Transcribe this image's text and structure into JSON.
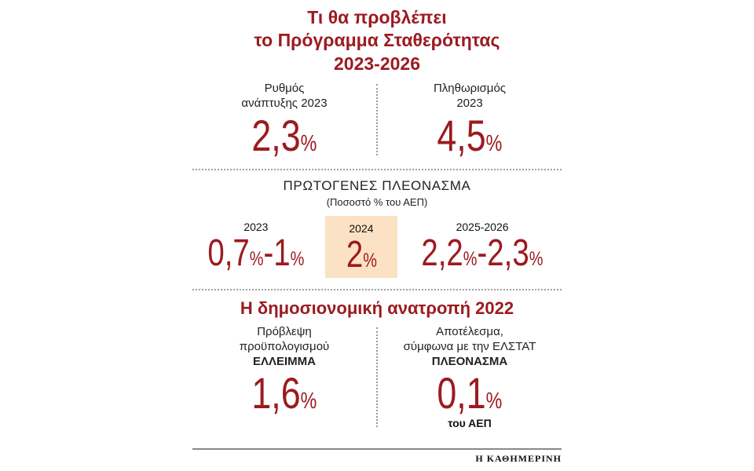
{
  "colors": {
    "accent_red": "#9b1b20",
    "highlight_box": "#fbe2c4",
    "text": "#1a1a1a",
    "divider": "#9a9a9a"
  },
  "header": {
    "title_line1": "Τι θα προβλέπει",
    "title_line2": "το Πρόγραμμα Σταθερότητας",
    "title_line3": "2023-2026"
  },
  "top_stats": [
    {
      "label_line1": "Ρυθμός",
      "label_line2": "ανάπτυξης 2023",
      "value": "2,3%"
    },
    {
      "label_line1": "Πληθωρισμός",
      "label_line2": "2023",
      "value": "4,5%"
    }
  ],
  "primary_surplus": {
    "heading": "ΠΡΩΤΟΓΕΝΕΣ ΠΛΕΟΝΑΣΜΑ",
    "subheading": "(Ποσοστό % του ΑΕΠ)",
    "columns": [
      {
        "year": "2023",
        "value": "0,7%-1%",
        "highlight": false
      },
      {
        "year": "2024",
        "value": "2%",
        "highlight": true
      },
      {
        "year": "2025-2026",
        "value": "2,2%-2,3%",
        "highlight": false
      }
    ]
  },
  "fiscal_2022": {
    "heading": "Η δημοσιονομική ανατροπή 2022",
    "columns": [
      {
        "label_line1": "Πρόβλεψη",
        "label_line2": "προϋπολογισμού",
        "label_bold": "ΕΛΛΕΙΜΜΑ",
        "value": "1,6%",
        "note": ""
      },
      {
        "label_line1": "Αποτέλεσμα,",
        "label_line2": "σύμφωνα με την ΕΛΣΤΑΤ",
        "label_bold": "ΠΛΕΟΝΑΣΜΑ",
        "value": "0,1%",
        "note": "του ΑΕΠ"
      }
    ]
  },
  "footer": {
    "brand": "Η ΚΑΘΗΜΕΡΙΝΗ"
  },
  "chart_data": [
    {
      "type": "table",
      "title": "Τι θα προβλέπει το Πρόγραμμα Σταθερότητας 2023-2026",
      "rows": [
        [
          "Ρυθμός ανάπτυξης 2023",
          "2,3%"
        ],
        [
          "Πληθωρισμός 2023",
          "4,5%"
        ]
      ]
    },
    {
      "type": "table",
      "title": "ΠΡΩΤΟΓΕΝΕΣ ΠΛΕΟΝΑΣΜΑ (Ποσοστό % του ΑΕΠ)",
      "rows": [
        [
          "2023",
          "0,7%-1%"
        ],
        [
          "2024",
          "2%"
        ],
        [
          "2025-2026",
          "2,2%-2,3%"
        ]
      ]
    },
    {
      "type": "table",
      "title": "Η δημοσιονομική ανατροπή 2022",
      "rows": [
        [
          "Πρόβλεψη προϋπολογισμού ΕΛΛΕΙΜΜΑ",
          "1,6%"
        ],
        [
          "Αποτέλεσμα, σύμφωνα με την ΕΛΣΤΑΤ ΠΛΕΟΝΑΣΜΑ",
          "0,1% του ΑΕΠ"
        ]
      ]
    }
  ]
}
